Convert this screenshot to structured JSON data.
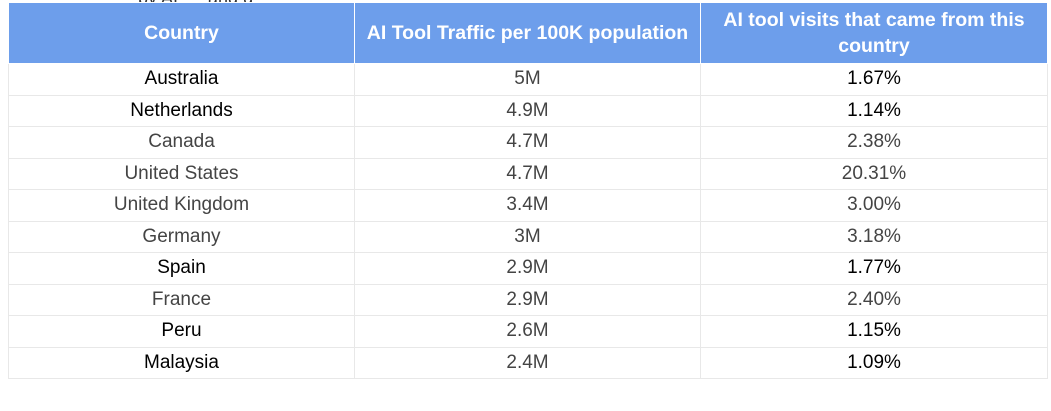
{
  "clipped_line": "... by AI, ... and g...",
  "table": {
    "headers": [
      "Country",
      "AI Tool Traffic per 100K population",
      "AI tool visits that came from this country"
    ],
    "rows": [
      {
        "country": "Australia",
        "traffic": "5M",
        "share": "1.67%"
      },
      {
        "country": "Netherlands",
        "traffic": "4.9M",
        "share": "1.14%"
      },
      {
        "country": "Canada",
        "traffic": "4.7M",
        "share": "2.38%"
      },
      {
        "country": "United States",
        "traffic": "4.7M",
        "share": "20.31%"
      },
      {
        "country": "United Kingdom",
        "traffic": "3.4M",
        "share": "3.00%"
      },
      {
        "country": "Germany",
        "traffic": "3M",
        "share": "3.18%"
      },
      {
        "country": "Spain",
        "traffic": "2.9M",
        "share": "1.77%"
      },
      {
        "country": "France",
        "traffic": "2.9M",
        "share": "2.40%"
      },
      {
        "country": "Peru",
        "traffic": "2.6M",
        "share": "1.15%"
      },
      {
        "country": "Malaysia",
        "traffic": "2.4M",
        "share": "1.09%"
      }
    ]
  }
}
